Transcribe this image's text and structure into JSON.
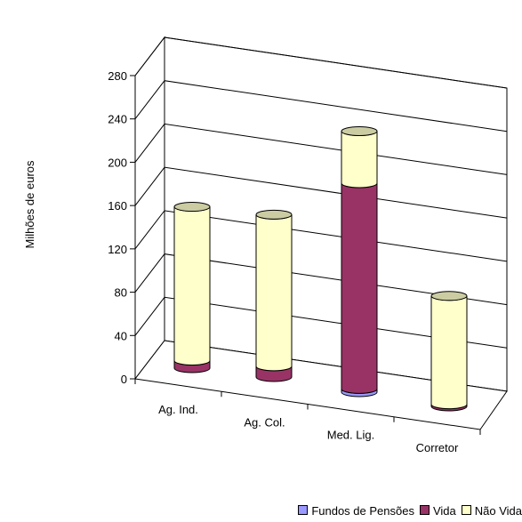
{
  "chart_data": {
    "type": "bar",
    "stacked": true,
    "three_d": true,
    "categories": [
      "Ag. Ind.",
      "Ag. Col.",
      "Med. Lig.",
      "Corretor"
    ],
    "series": [
      {
        "name": "Fundos de Pensões",
        "values": [
          0,
          0,
          3,
          0
        ],
        "color": "#9999ff"
      },
      {
        "name": "Vida",
        "values": [
          7,
          10,
          190,
          2
        ],
        "color": "#993366"
      },
      {
        "name": "Não Vida",
        "values": [
          142,
          140,
          48,
          100
        ],
        "color": "#ffffcc"
      }
    ],
    "ylabel": "Milhões de euros",
    "ylim": [
      0,
      280
    ],
    "yticks": [
      0,
      40,
      80,
      120,
      160,
      200,
      240,
      280
    ],
    "grid": true,
    "legend": "bottom-right"
  }
}
